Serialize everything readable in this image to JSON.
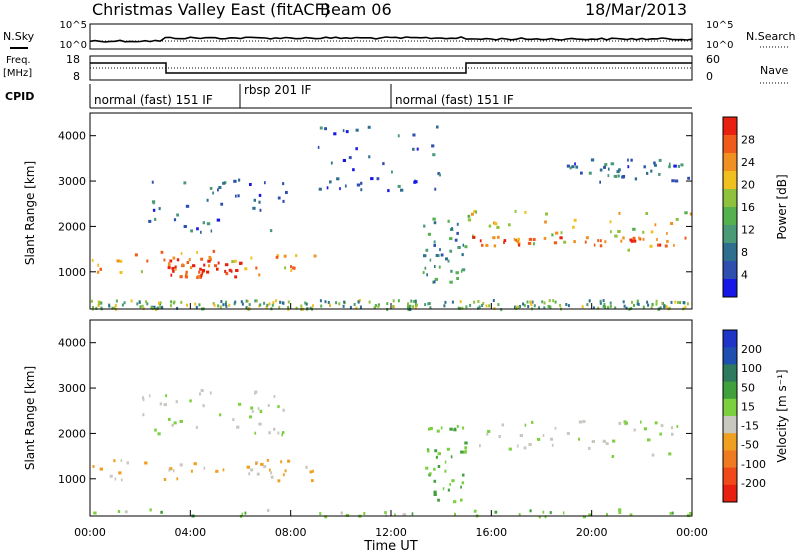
{
  "header": {
    "station": "Christmas Valley East (fitACF)",
    "beam": "Beam 06",
    "date": "18/Mar/2013"
  },
  "labels": {
    "nsky": "N.Sky",
    "nsearch": "N.Search",
    "freq_line1": "Freq.",
    "freq_line2": "[MHz]",
    "nave": "Nave",
    "cpid": "CPID",
    "time_axis": "Time UT",
    "y_axis": "Slant Range [km]",
    "power_cbar": "Power [dB]",
    "velocity_cbar": "Velocity [m s⁻¹]"
  },
  "noise_panel": {
    "left_ticks": [
      "10^5",
      "10^0"
    ],
    "right_ticks": [
      "10^5",
      "10^0"
    ]
  },
  "freq_panel": {
    "left_ticks": [
      "18",
      "8"
    ],
    "right_ticks": [
      "60",
      "0"
    ]
  },
  "cpid_segments": [
    {
      "label": "normal (fast) 151 IF",
      "start_hr": 0,
      "end_hr": 6
    },
    {
      "label": "rbsp 201 IF",
      "start_hr": 6,
      "end_hr": 12
    },
    {
      "label": "normal (fast) 151 IF",
      "start_hr": 12,
      "end_hr": 24
    }
  ],
  "x_ticks": [
    "00:00",
    "04:00",
    "08:00",
    "12:00",
    "16:00",
    "20:00",
    "00:00"
  ],
  "y_ticks": [
    "1000",
    "2000",
    "3000",
    "4000"
  ],
  "power_colorbar": {
    "ticks": [
      "4",
      "8",
      "12",
      "16",
      "20",
      "24",
      "28"
    ],
    "colors": [
      "#1717e6",
      "#2f4fb0",
      "#2e6e8e",
      "#4a9a78",
      "#55b04e",
      "#8fc23c",
      "#f0c020",
      "#f09020",
      "#f05a1a",
      "#e82010"
    ]
  },
  "velocity_colorbar": {
    "ticks": [
      "200",
      "100",
      "50",
      "15",
      "-15",
      "-50",
      "-100",
      "-200"
    ],
    "colors": [
      "#1f35c8",
      "#1f50b0",
      "#2e7a5e",
      "#3fa03c",
      "#7cd040",
      "#c8c8c0",
      "#f0a020",
      "#f07a20",
      "#f04a1a",
      "#e82010"
    ]
  },
  "chart_data": [
    {
      "type": "heatmap",
      "title": "Christmas Valley East (fitACF) Beam 06",
      "xlabel": "Time UT",
      "ylabel": "Slant Range [km]",
      "xlim": [
        0,
        24
      ],
      "ylim": [
        180,
        4500
      ],
      "colorbar_label": "Power [dB]",
      "colorbar_range": [
        0,
        30
      ],
      "echo_regions": [
        {
          "t_start": 0.0,
          "t_end": 9.0,
          "r_min": 950,
          "r_max": 1500,
          "value_dB": 22
        },
        {
          "t_start": 3.0,
          "t_end": 6.0,
          "r_min": 900,
          "r_max": 1300,
          "value_dB": 28
        },
        {
          "t_start": 15.0,
          "t_end": 24.0,
          "r_min": 1500,
          "r_max": 2400,
          "value_dB": 18
        },
        {
          "t_start": 15.0,
          "t_end": 24.0,
          "r_min": 1600,
          "r_max": 1800,
          "value_dB": 26
        },
        {
          "t_start": 13.2,
          "t_end": 15.0,
          "r_min": 700,
          "r_max": 2200,
          "value_dB": 10
        },
        {
          "t_start": 2.0,
          "t_end": 8.0,
          "r_min": 1900,
          "r_max": 3100,
          "value_dB": 6
        },
        {
          "t_start": 9.0,
          "t_end": 14.0,
          "r_min": 2800,
          "r_max": 4300,
          "value_dB": 6
        },
        {
          "t_start": 19.0,
          "t_end": 24.0,
          "r_min": 3000,
          "r_max": 3500,
          "value_dB": 7
        }
      ]
    },
    {
      "type": "heatmap",
      "xlabel": "Time UT",
      "ylabel": "Slant Range [km]",
      "xlim": [
        0,
        24
      ],
      "ylim": [
        180,
        4500
      ],
      "colorbar_label": "Velocity [m s⁻¹]",
      "colorbar_range": [
        -250,
        250
      ],
      "echo_regions": [
        {
          "t_start": 0.0,
          "t_end": 9.0,
          "r_min": 950,
          "r_max": 1450,
          "value_ms": -60
        },
        {
          "t_start": 15.0,
          "t_end": 24.0,
          "r_min": 1500,
          "r_max": 2300,
          "value_ms": 0
        },
        {
          "t_start": 13.2,
          "t_end": 15.0,
          "r_min": 500,
          "r_max": 2200,
          "value_ms": 40
        },
        {
          "t_start": 0.0,
          "t_end": 24.0,
          "r_min": 180,
          "r_max": 350,
          "value_ms": 30
        },
        {
          "t_start": 2.0,
          "t_end": 8.0,
          "r_min": 2000,
          "r_max": 3000,
          "value_ms": 0
        }
      ]
    }
  ]
}
